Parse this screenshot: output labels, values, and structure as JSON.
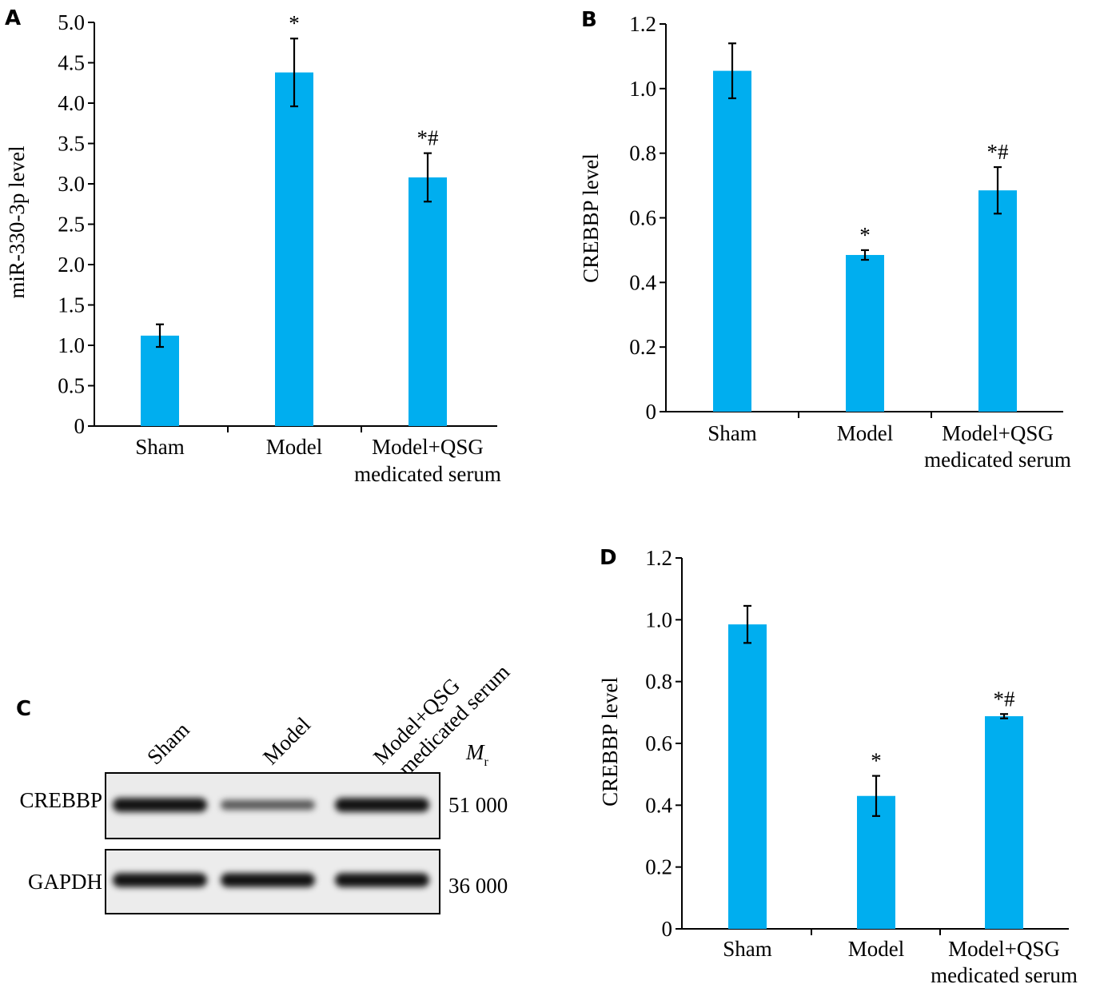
{
  "bar_color": "#00aeef",
  "chart_data": [
    {
      "panel": "A",
      "type": "bar",
      "categories": [
        "Sham",
        "Model",
        "Model+QSG\nmedicated serum"
      ],
      "values": [
        1.12,
        4.38,
        3.08
      ],
      "errors": [
        0.14,
        0.42,
        0.3
      ],
      "annotations": [
        "",
        "*",
        "*#"
      ],
      "ylabel": "miR-330-3p level",
      "ylim": [
        0,
        5.0
      ],
      "yticks": [
        "0",
        "0.5",
        "1.0",
        "1.5",
        "2.0",
        "2.5",
        "3.0",
        "3.5",
        "4.0",
        "4.5",
        "5.0"
      ],
      "title": "",
      "xlabel": ""
    },
    {
      "panel": "B",
      "type": "bar",
      "categories": [
        "Sham",
        "Model",
        "Model+QSG\nmedicated serum"
      ],
      "values": [
        1.055,
        0.485,
        0.685
      ],
      "errors": [
        0.085,
        0.015,
        0.072
      ],
      "annotations": [
        "",
        "*",
        "*#"
      ],
      "ylabel": "CREBBP level",
      "ylim": [
        0,
        1.2
      ],
      "yticks": [
        "0",
        "0.2",
        "0.4",
        "0.6",
        "0.8",
        "1.0",
        "1.2"
      ],
      "title": "",
      "xlabel": ""
    },
    {
      "panel": "D",
      "type": "bar",
      "categories": [
        "Sham",
        "Model",
        "Model+QSG\nmedicated serum"
      ],
      "values": [
        0.985,
        0.43,
        0.688
      ],
      "errors": [
        0.06,
        0.065,
        0.007
      ],
      "annotations": [
        "",
        "*",
        "*#"
      ],
      "ylabel": "CREBBP level",
      "ylim": [
        0,
        1.2
      ],
      "yticks": [
        "0",
        "0.2",
        "0.4",
        "0.6",
        "0.8",
        "1.0",
        "1.2"
      ],
      "title": "",
      "xlabel": ""
    }
  ],
  "western_blot": {
    "panel": "C",
    "lanes": [
      "Sham",
      "Model",
      "Model+QSG\nmedicated serum"
    ],
    "mr_label_main": "M",
    "mr_label_sub": "r",
    "rows": [
      {
        "protein": "CREBBP",
        "mr": "51 000",
        "intensities": [
          0.95,
          0.45,
          0.95
        ]
      },
      {
        "protein": "GAPDH",
        "mr": "36 000",
        "intensities": [
          0.95,
          0.95,
          0.95
        ]
      }
    ]
  }
}
